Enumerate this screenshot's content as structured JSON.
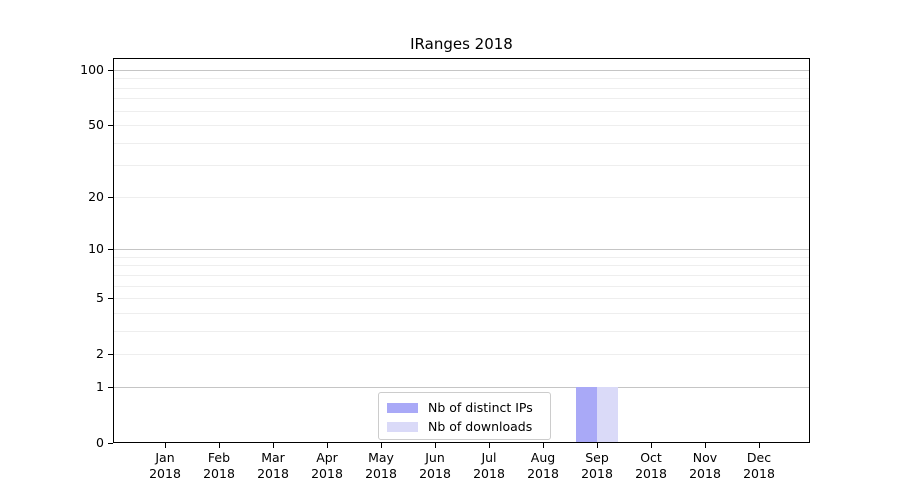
{
  "chart_data": {
    "type": "bar",
    "title": "IRanges 2018",
    "categories": [
      "Jan",
      "Feb",
      "Mar",
      "Apr",
      "May",
      "Jun",
      "Jul",
      "Aug",
      "Sep",
      "Oct",
      "Nov",
      "Dec"
    ],
    "year_label": "2018",
    "series": [
      {
        "name": "Nb of distinct IPs",
        "color": "#a9a9f7",
        "values": [
          0,
          0,
          0,
          0,
          0,
          0,
          0,
          0,
          1,
          0,
          0,
          0
        ]
      },
      {
        "name": "Nb of downloads",
        "color": "#dadaf8",
        "values": [
          0,
          0,
          0,
          0,
          0,
          0,
          0,
          0,
          1,
          0,
          0,
          0
        ]
      }
    ],
    "y_ticks": [
      0,
      1,
      2,
      5,
      10,
      20,
      50,
      100
    ],
    "y_scale": "log1p",
    "ylim": [
      0,
      100
    ],
    "xlabel": "",
    "ylabel": "",
    "grid": "horizontal",
    "legend_position": "lower center",
    "colors": {
      "major_grid": "#c5c5c5",
      "minor_grid": "#eeeeee",
      "spine": "#000000",
      "background": "#ffffff"
    }
  }
}
